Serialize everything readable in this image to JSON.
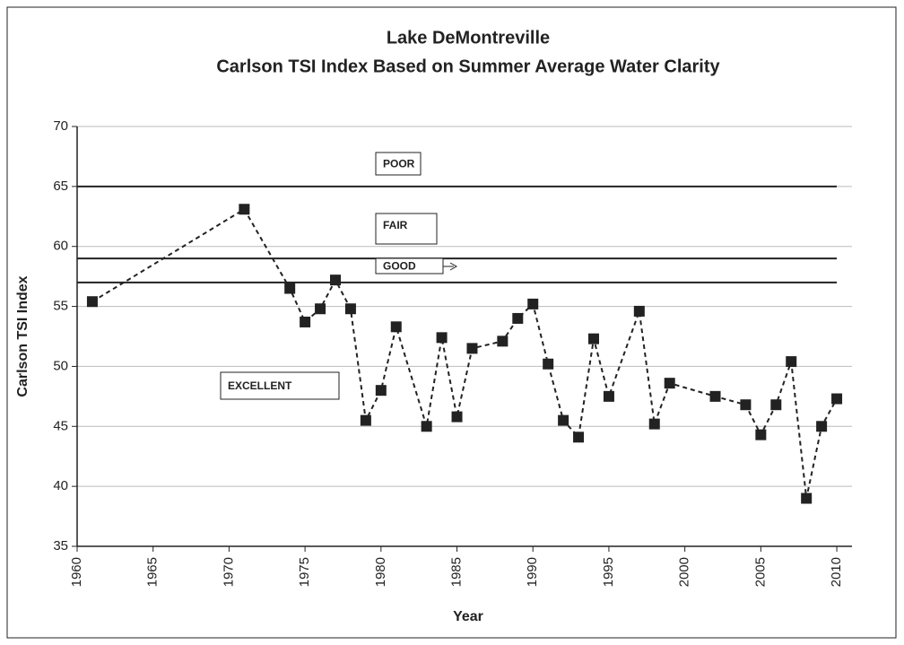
{
  "chart_data": {
    "type": "scatter-line",
    "title": "Lake DeMontreville",
    "subtitle": "Carlson TSI Index Based on Summer Average Water Clarity",
    "x_label": "Year",
    "y_label": "Carlson TSI Index",
    "x": [
      1961,
      1971,
      1974,
      1975,
      1976,
      1977,
      1978,
      1979,
      1980,
      1981,
      1983,
      1984,
      1985,
      1986,
      1988,
      1989,
      1990,
      1991,
      1992,
      1993,
      1994,
      1995,
      1997,
      1998,
      1999,
      2002,
      2004,
      2005,
      2006,
      2007,
      2008,
      2009,
      2010
    ],
    "series": [
      {
        "color": "#222222",
        "values": [
          55.4,
          63.1,
          56.5,
          53.7,
          54.8,
          57.2,
          54.8,
          45.5,
          48.0,
          53.3,
          45.0,
          52.4,
          45.8,
          51.5,
          52.1,
          54.0,
          55.2,
          50.2,
          45.5,
          44.1,
          52.3,
          47.5,
          54.6,
          45.2,
          48.6,
          47.5,
          46.8,
          44.3,
          46.8,
          50.4,
          39.0,
          45.0,
          47.3
        ]
      }
    ],
    "xlim": [
      1960,
      2011
    ],
    "xticks": [
      1960,
      1965,
      1970,
      1975,
      1980,
      1985,
      1990,
      1995,
      2000,
      2005,
      2010
    ],
    "ylim": [
      35,
      70
    ],
    "yticks": [
      35,
      40,
      45,
      50,
      55,
      60,
      65,
      70
    ],
    "grid": true,
    "reference_lines": [
      65,
      59,
      57
    ],
    "annotations": [
      "POOR",
      "FAIR",
      "GOOD",
      "EXCELLENT"
    ]
  }
}
